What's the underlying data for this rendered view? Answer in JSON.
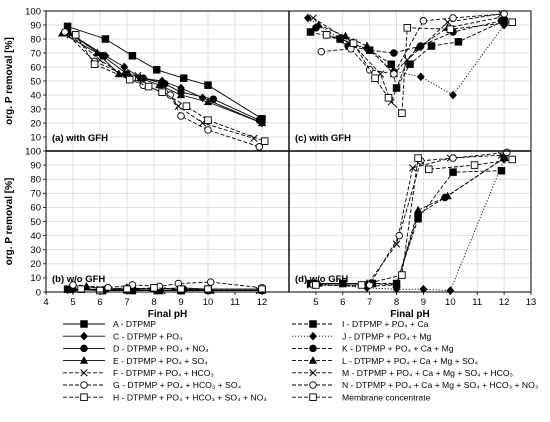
{
  "chart_data": {
    "type": "line",
    "x_axis": {
      "label": "Final pH",
      "range": [
        4,
        13
      ],
      "ticks": [
        "4",
        "5",
        "6",
        "7",
        "8",
        "9",
        "10",
        "11",
        "12",
        "13"
      ]
    },
    "y_axis": {
      "label": "org. P removal [%]",
      "range": [
        0,
        100
      ],
      "ticks": [
        "0",
        "10",
        "20",
        "30",
        "40",
        "50",
        "60",
        "70",
        "80",
        "90",
        "100"
      ]
    },
    "grid": true,
    "legend_position": "bottom",
    "legend_left": [
      {
        "id": "A",
        "label": "A - DTPMP",
        "marker": "square-filled",
        "line": "solid"
      },
      {
        "id": "C",
        "label": "C - DTPMP + PO₄",
        "marker": "diamond-filled",
        "line": "solid"
      },
      {
        "id": "D",
        "label": "D - DTPMP + PO₄ + NO₃",
        "marker": "circle-filled",
        "line": "solid"
      },
      {
        "id": "E",
        "label": "E - DTPMP + PO₄ + SO₄",
        "marker": "triangle-filled",
        "line": "solid"
      },
      {
        "id": "F",
        "label": "F - DTPMP + PO₄ + HCO₃",
        "marker": "cross",
        "line": "dashed"
      },
      {
        "id": "G",
        "label": "G - DTPMP + PO₄ + HCO₃ + SO₄",
        "marker": "circle-open",
        "line": "dashed"
      },
      {
        "id": "H",
        "label": "H - DTPMP + PO₄ + HCO₃ + SO₄ + NO₃",
        "marker": "square-open",
        "line": "dashed"
      }
    ],
    "legend_right": [
      {
        "id": "I",
        "label": "I - DTPMP + PO₄ + Ca",
        "marker": "square-filled",
        "line": "dashed"
      },
      {
        "id": "J",
        "label": "J - DTPMP + PO₄ + Mg",
        "marker": "diamond-filled",
        "line": "dotted"
      },
      {
        "id": "K",
        "label": "K - DTPMP + PO₄ + Ca + Mg",
        "marker": "circle-filled",
        "line": "dashed"
      },
      {
        "id": "L",
        "label": "L - DTPMP + PO₄ + Ca + Mg + SO₄",
        "marker": "triangle-filled",
        "line": "dashed"
      },
      {
        "id": "M",
        "label": "M - DTPMP + PO₄ + Ca + Mg + SO₄ + HCO₃",
        "marker": "cross",
        "line": "dashed"
      },
      {
        "id": "N",
        "label": "N - DTPMP + PO₄ + Ca + Mg + SO₄ + HCO₃ + NO₃",
        "marker": "circle-open",
        "line": "dashed"
      },
      {
        "id": "MC",
        "label": "Membrane concentrate",
        "marker": "square-open",
        "line": "dashed"
      }
    ],
    "panels": [
      {
        "label": "(a) with GFH",
        "series": [
          {
            "id": "A",
            "points": [
              [
                4.8,
                89
              ],
              [
                6.2,
                80
              ],
              [
                7.2,
                68
              ],
              [
                8.1,
                58
              ],
              [
                9.1,
                52
              ],
              [
                10.0,
                47
              ],
              [
                12.0,
                23
              ]
            ]
          },
          {
            "id": "C",
            "points": [
              [
                4.8,
                85
              ],
              [
                6.2,
                68
              ],
              [
                6.9,
                60
              ],
              [
                7.5,
                52
              ],
              [
                8.3,
                50
              ],
              [
                9.0,
                45
              ],
              [
                9.8,
                38
              ],
              [
                12.0,
                20
              ]
            ]
          },
          {
            "id": "D",
            "points": [
              [
                4.8,
                85
              ],
              [
                6.1,
                68
              ],
              [
                7.0,
                55
              ],
              [
                7.6,
                52
              ],
              [
                8.4,
                48
              ],
              [
                9.0,
                42
              ],
              [
                10.2,
                37
              ],
              [
                11.9,
                22
              ]
            ]
          },
          {
            "id": "E",
            "points": [
              [
                4.6,
                84
              ],
              [
                5.9,
                70
              ],
              [
                6.7,
                55
              ],
              [
                7.5,
                52
              ],
              [
                8.2,
                47
              ],
              [
                9.0,
                40
              ],
              [
                10.0,
                35
              ],
              [
                12.0,
                20
              ]
            ]
          },
          {
            "id": "F",
            "points": [
              [
                4.9,
                83
              ],
              [
                6.0,
                65
              ],
              [
                6.8,
                55
              ],
              [
                7.4,
                54
              ],
              [
                8.3,
                48
              ],
              [
                8.9,
                32
              ],
              [
                9.8,
                20
              ],
              [
                11.7,
                9
              ]
            ]
          },
          {
            "id": "G",
            "points": [
              [
                4.7,
                85
              ],
              [
                5.8,
                64
              ],
              [
                7.2,
                52
              ],
              [
                7.6,
                47
              ],
              [
                8.6,
                40
              ],
              [
                9.0,
                25
              ],
              [
                10.0,
                15
              ],
              [
                11.9,
                3
              ]
            ]
          },
          {
            "id": "H",
            "points": [
              [
                5.1,
                83
              ],
              [
                5.8,
                62
              ],
              [
                7.1,
                51
              ],
              [
                7.8,
                46
              ],
              [
                8.3,
                42
              ],
              [
                9.2,
                32
              ],
              [
                10.0,
                22
              ],
              [
                12.1,
                7
              ]
            ]
          }
        ]
      },
      {
        "label": "(b) w/o GFH",
        "series": [
          {
            "id": "A",
            "points": [
              [
                4.8,
                2
              ],
              [
                6.1,
                1
              ],
              [
                7.2,
                1
              ],
              [
                8.2,
                1
              ],
              [
                9.0,
                1
              ],
              [
                10.0,
                2
              ],
              [
                12.0,
                2
              ]
            ]
          },
          {
            "id": "C",
            "points": [
              [
                4.9,
                2
              ],
              [
                6.2,
                2
              ],
              [
                7.0,
                3
              ],
              [
                8.0,
                2
              ],
              [
                9.0,
                3
              ],
              [
                10.0,
                2
              ],
              [
                12.0,
                2
              ]
            ]
          },
          {
            "id": "D",
            "points": [
              [
                5.0,
                2
              ],
              [
                6.1,
                1
              ],
              [
                7.0,
                2
              ],
              [
                8.1,
                1
              ],
              [
                9.1,
                2
              ],
              [
                10.0,
                1
              ],
              [
                12.0,
                1
              ]
            ]
          },
          {
            "id": "E",
            "points": [
              [
                5.5,
                4
              ],
              [
                6.2,
                2
              ],
              [
                7.0,
                1
              ],
              [
                8.2,
                1
              ],
              [
                9.0,
                1
              ],
              [
                10.1,
                1
              ],
              [
                12.0,
                1
              ]
            ]
          },
          {
            "id": "F",
            "points": [
              [
                4.9,
                1
              ],
              [
                6.0,
                2
              ],
              [
                7.1,
                2
              ],
              [
                8.3,
                1
              ],
              [
                9.0,
                2
              ],
              [
                10.0,
                1
              ],
              [
                11.9,
                1
              ]
            ]
          },
          {
            "id": "G",
            "points": [
              [
                5.0,
                5
              ],
              [
                6.3,
                3
              ],
              [
                7.2,
                5
              ],
              [
                8.2,
                4
              ],
              [
                8.9,
                6
              ],
              [
                10.1,
                7
              ],
              [
                12.0,
                3
              ]
            ]
          },
          {
            "id": "H",
            "points": [
              [
                5.3,
                2
              ],
              [
                6.0,
                1
              ],
              [
                7.0,
                2
              ],
              [
                8.0,
                3
              ],
              [
                9.0,
                2
              ],
              [
                10.0,
                2
              ],
              [
                12.0,
                2
              ]
            ]
          }
        ]
      },
      {
        "label": "(c) with GFH",
        "series": [
          {
            "id": "I",
            "points": [
              [
                4.8,
                85
              ],
              [
                5.9,
                80
              ],
              [
                7.0,
                72
              ],
              [
                7.8,
                62
              ],
              [
                8.0,
                45
              ],
              [
                8.5,
                62
              ],
              [
                9.3,
                75
              ],
              [
                10.3,
                78
              ],
              [
                12.0,
                93
              ]
            ]
          },
          {
            "id": "J",
            "points": [
              [
                4.7,
                95
              ],
              [
                5.9,
                80
              ],
              [
                6.9,
                73
              ],
              [
                7.9,
                57
              ],
              [
                8.9,
                53
              ],
              [
                10.1,
                40
              ],
              [
                12.0,
                90
              ]
            ]
          },
          {
            "id": "K",
            "points": [
              [
                5.0,
                88
              ],
              [
                6.2,
                75
              ],
              [
                7.0,
                72
              ],
              [
                7.9,
                70
              ],
              [
                8.9,
                75
              ],
              [
                10.1,
                85
              ],
              [
                11.9,
                93
              ]
            ]
          },
          {
            "id": "L",
            "points": [
              [
                5.1,
                90
              ],
              [
                6.1,
                82
              ],
              [
                6.9,
                75
              ],
              [
                7.9,
                55
              ],
              [
                8.8,
                74
              ],
              [
                9.9,
                88
              ],
              [
                12.0,
                96
              ]
            ]
          },
          {
            "id": "M",
            "points": [
              [
                4.9,
                95
              ],
              [
                6.3,
                78
              ],
              [
                7.4,
                55
              ],
              [
                7.8,
                35
              ],
              [
                8.4,
                65
              ],
              [
                9.9,
                92
              ],
              [
                11.9,
                98
              ]
            ]
          },
          {
            "id": "N",
            "points": [
              [
                5.2,
                71
              ],
              [
                6.3,
                73
              ],
              [
                7.0,
                58
              ],
              [
                7.9,
                55
              ],
              [
                9.0,
                93
              ],
              [
                10.1,
                95
              ],
              [
                12.0,
                98
              ]
            ]
          },
          {
            "id": "MC",
            "points": [
              [
                5.4,
                83
              ],
              [
                6.4,
                77
              ],
              [
                7.2,
                52
              ],
              [
                7.7,
                38
              ],
              [
                8.2,
                27
              ],
              [
                8.4,
                88
              ],
              [
                10.0,
                87
              ],
              [
                12.3,
                92
              ]
            ]
          }
        ]
      },
      {
        "label": "(d) w/o GFH",
        "series": [
          {
            "id": "I",
            "points": [
              [
                4.8,
                6
              ],
              [
                6.0,
                6
              ],
              [
                7.1,
                6
              ],
              [
                8.0,
                6
              ],
              [
                8.8,
                52
              ],
              [
                10.1,
                85
              ],
              [
                11.9,
                86
              ]
            ]
          },
          {
            "id": "J",
            "points": [
              [
                5.0,
                6
              ],
              [
                6.9,
                3
              ],
              [
                8.0,
                2
              ],
              [
                9.0,
                2
              ],
              [
                10.0,
                1
              ],
              [
                12.0,
                94
              ]
            ]
          },
          {
            "id": "K",
            "points": [
              [
                5.0,
                5
              ],
              [
                6.9,
                4
              ],
              [
                8.0,
                5
              ],
              [
                8.8,
                55
              ],
              [
                9.8,
                67
              ],
              [
                12.0,
                95
              ]
            ]
          },
          {
            "id": "L",
            "points": [
              [
                5.1,
                6
              ],
              [
                6.9,
                6
              ],
              [
                8.0,
                5
              ],
              [
                8.8,
                58
              ],
              [
                9.9,
                68
              ],
              [
                12.0,
                95
              ]
            ]
          },
          {
            "id": "M",
            "points": [
              [
                4.8,
                5
              ],
              [
                6.9,
                5
              ],
              [
                8.0,
                34
              ],
              [
                8.6,
                88
              ],
              [
                10.0,
                95
              ],
              [
                11.9,
                97
              ]
            ]
          },
          {
            "id": "N",
            "points": [
              [
                4.9,
                5
              ],
              [
                7.0,
                5
              ],
              [
                8.1,
                40
              ],
              [
                8.9,
                93
              ],
              [
                10.1,
                95
              ],
              [
                12.1,
                99
              ]
            ]
          },
          {
            "id": "MC",
            "points": [
              [
                5.0,
                5
              ],
              [
                6.7,
                5
              ],
              [
                8.2,
                12
              ],
              [
                8.8,
                95
              ],
              [
                9.2,
                87
              ],
              [
                10.9,
                90
              ],
              [
                12.3,
                94
              ]
            ]
          }
        ]
      }
    ]
  }
}
